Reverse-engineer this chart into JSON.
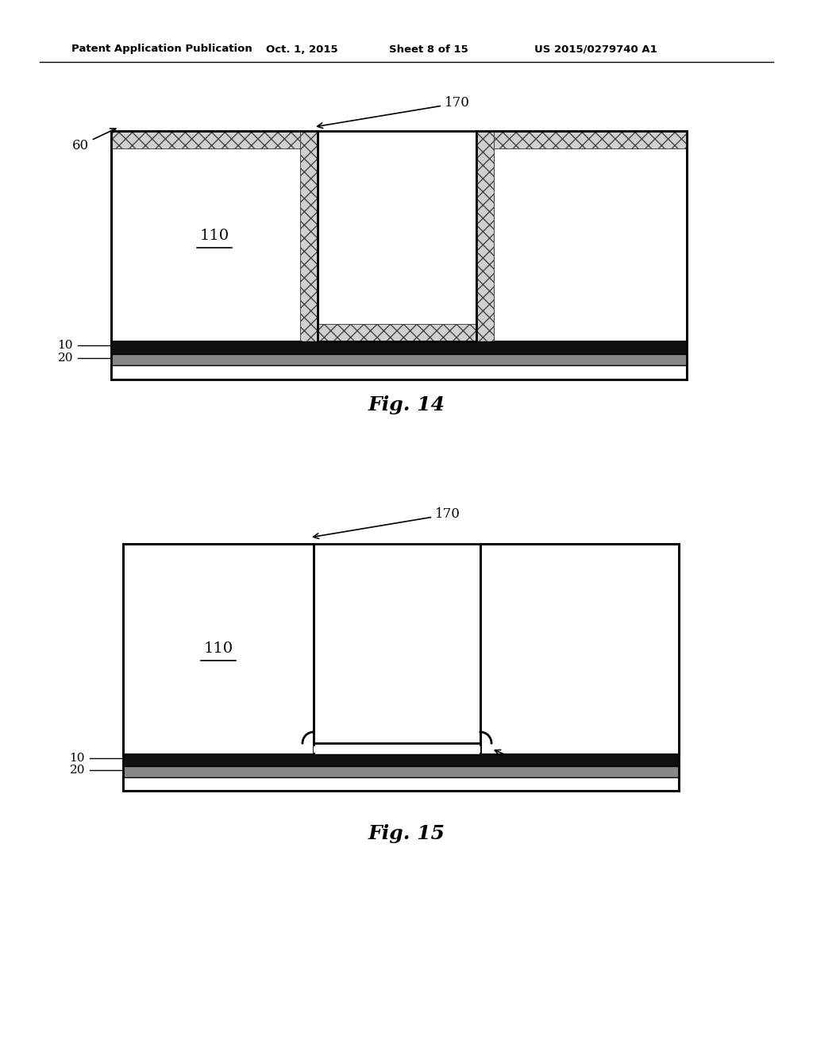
{
  "bg_color": "#ffffff",
  "header_text": "Patent Application Publication",
  "header_date": "Oct. 1, 2015",
  "header_sheet": "Sheet 8 of 15",
  "header_patent": "US 2015/0279740 A1",
  "fig14_caption": "Fig. 14",
  "fig15_caption": "Fig. 15"
}
